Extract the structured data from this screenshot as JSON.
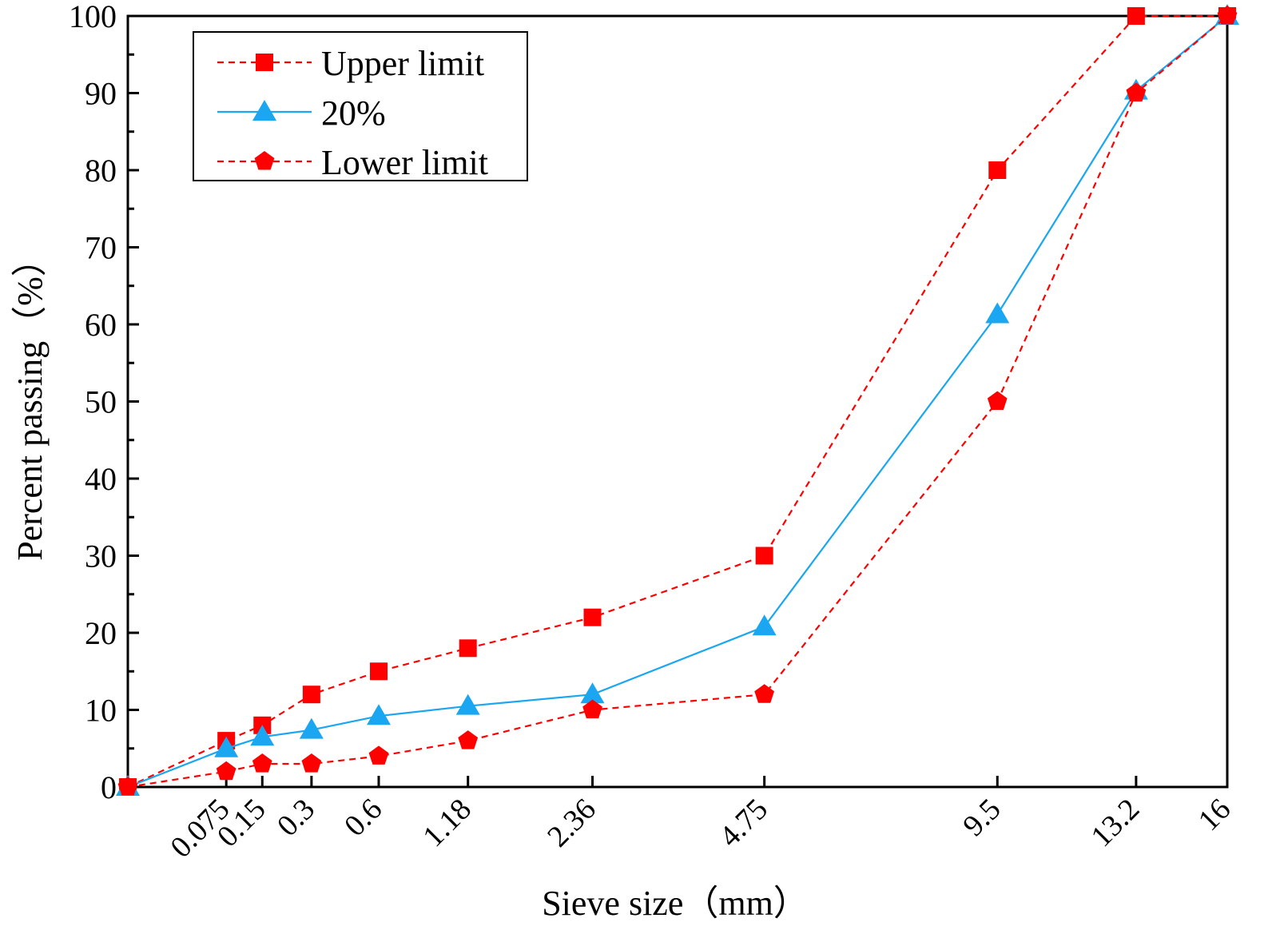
{
  "chart_data": {
    "type": "line",
    "xlabel": "Sieve size（mm）",
    "ylabel": "Percent passing（%）",
    "ylim": [
      0,
      100
    ],
    "yticks": [
      "0",
      "10",
      "20",
      "30",
      "40",
      "50",
      "60",
      "70",
      "80",
      "90",
      "100"
    ],
    "categories": [
      "0.075",
      "0.15",
      "0.3",
      "0.6",
      "1.18",
      "2.36",
      "4.75",
      "9.5",
      "13.2",
      "16"
    ],
    "x_scale": "power 0.45 of sieve size (mm)",
    "series": [
      {
        "name": "Upper limit",
        "color": "#ff0000",
        "line_style": "dashed",
        "marker": "square",
        "x": [
          0,
          0.075,
          0.15,
          0.3,
          0.6,
          1.18,
          2.36,
          4.75,
          9.5,
          13.2,
          16
        ],
        "values": [
          0,
          6,
          8,
          12,
          15,
          18,
          22,
          30,
          80,
          100,
          100
        ]
      },
      {
        "name": "20%",
        "color": "#1aa6f0",
        "line_style": "solid",
        "marker": "triangle",
        "x": [
          0,
          0.075,
          0.15,
          0.3,
          0.6,
          1.18,
          2.36,
          4.75,
          9.5,
          13.2,
          16
        ],
        "values": [
          0,
          5,
          6.5,
          7.4,
          9.2,
          10.5,
          12,
          20.8,
          61.3,
          90.3,
          100
        ]
      },
      {
        "name": "Lower limit",
        "color": "#ff0000",
        "line_style": "dashed",
        "marker": "pentagon",
        "x": [
          0,
          0.075,
          0.15,
          0.3,
          0.6,
          1.18,
          2.36,
          4.75,
          9.5,
          13.2,
          16
        ],
        "values": [
          0,
          2,
          3,
          3,
          4,
          6,
          10,
          12,
          50,
          90,
          100
        ]
      }
    ],
    "legend": {
      "position": "top-left"
    }
  }
}
